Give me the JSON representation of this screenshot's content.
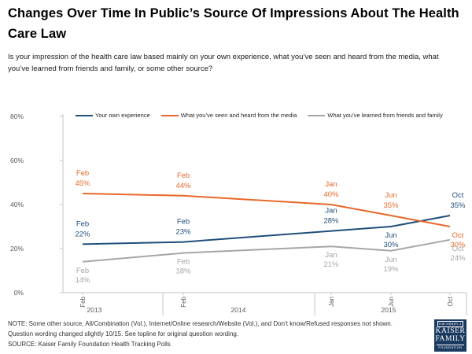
{
  "title": "Changes Over Time In Public’s Source Of Impressions About The Health Care Law",
  "subtitle": "Is your impression of the health care law based mainly on your own experience, what you’ve seen and heard from the media, what you’ve learned from friends and family, or some other source?",
  "chart_data": {
    "type": "line",
    "x": [
      "Feb 2013",
      "Feb 2014",
      "Jan 2015",
      "Jun 2015",
      "Oct 2015"
    ],
    "x_tick_labels": [
      "Feb",
      "Feb",
      "Jan",
      "Jun",
      "Oct"
    ],
    "year_groups": [
      {
        "label": "2013"
      },
      {
        "label": "2014"
      },
      {
        "label": "2015"
      }
    ],
    "y_ticks": [
      80,
      60,
      40,
      20,
      0
    ],
    "y_tick_suffix": "%",
    "ylim": [
      0,
      80
    ],
    "grid": false,
    "legend_position": "top",
    "data_labels": true,
    "series": [
      {
        "name": "Your own experience",
        "color": "#1f4e79",
        "values": [
          22,
          23,
          28,
          30,
          35
        ],
        "label_side": [
          "above",
          "above",
          "above",
          "below",
          "above"
        ]
      },
      {
        "name": "What you’ve seen and heard from the media",
        "color": "#e8682b",
        "values": [
          45,
          44,
          40,
          35,
          30
        ],
        "label_side": [
          "above",
          "above",
          "above",
          "above",
          "below"
        ]
      },
      {
        "name": "What you’ve learned from friends and family",
        "color": "#a6a6a6",
        "values": [
          14,
          18,
          21,
          19,
          24
        ],
        "label_side": [
          "below",
          "below",
          "below",
          "below",
          "below"
        ]
      }
    ]
  },
  "notes": {
    "line1": "NOTE: Some other source, All/Combination (Vol.), Internet/Online research/Website (Vol.), and Don’t know/Refused responses not shown.",
    "line2": "Question wording changed slightly 10/15.  See topline for original question wording.",
    "line3": "SOURCE: Kaiser Family Foundation Health Tracking Polls"
  },
  "logo": {
    "top": "THE HENRY J.",
    "name1": "KAISER",
    "name2": "FAMILY",
    "bottom": "FOUNDATION"
  }
}
